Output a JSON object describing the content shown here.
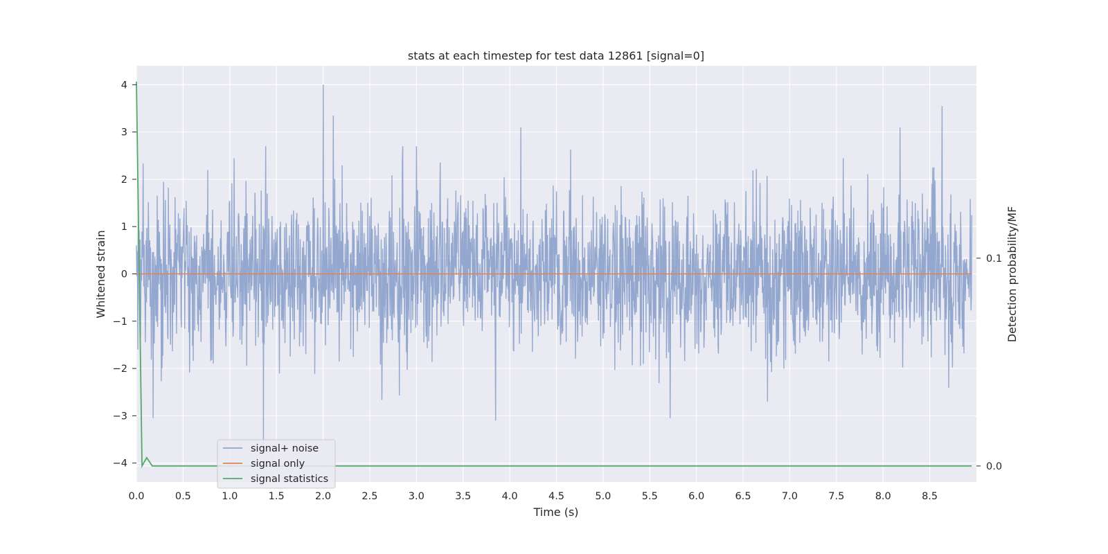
{
  "chart_data": {
    "type": "line",
    "title": "stats at each timestep for test data 12861 [signal=0]",
    "xlabel": "Time (s)",
    "ylabel": "Whitened strain",
    "y2label": "Detection probability/MF",
    "xlim": [
      0.0,
      9.0
    ],
    "ylim": [
      -4.4,
      4.4
    ],
    "y2lim": [
      -0.0077,
      0.1926
    ],
    "xticks": [
      "0.0",
      "0.5",
      "1.0",
      "1.5",
      "2.0",
      "2.5",
      "3.0",
      "3.5",
      "4.0",
      "4.5",
      "5.0",
      "5.5",
      "6.0",
      "6.5",
      "7.0",
      "7.5",
      "8.0",
      "8.5"
    ],
    "xtick_values": [
      0.0,
      0.5,
      1.0,
      1.5,
      2.0,
      2.5,
      3.0,
      3.5,
      4.0,
      4.5,
      5.0,
      5.5,
      6.0,
      6.5,
      7.0,
      7.5,
      8.0,
      8.5
    ],
    "yticks": [
      "−4",
      "−3",
      "−2",
      "−1",
      "0",
      "1",
      "2",
      "3",
      "4"
    ],
    "ytick_values": [
      -4,
      -3,
      -2,
      -1,
      0,
      1,
      2,
      3,
      4
    ],
    "y2ticks": [
      "0.0",
      "0.1"
    ],
    "y2tick_values": [
      0.0,
      0.1
    ],
    "grid": true,
    "legend_position": "lower-left",
    "colors": {
      "background": "#eaeaf2",
      "grid": "#ffffff",
      "noise": "#8fa4cc",
      "signal_only": "#dd8452",
      "statistics": "#55a868",
      "text": "#262626"
    },
    "series": [
      {
        "name": "signal+ noise",
        "axis": "left",
        "description_of_shape": "dense whitened noise sampled over the full interval",
        "sample_count": 2250,
        "envelope_min": -3.6,
        "envelope_max": 4.0,
        "peaks": [
          {
            "x": 2.0,
            "y": 4.0
          },
          {
            "x": 2.11,
            "y": 3.35
          },
          {
            "x": 4.12,
            "y": 3.1
          },
          {
            "x": 8.18,
            "y": 3.1
          },
          {
            "x": 8.63,
            "y": 3.55
          },
          {
            "x": 1.36,
            "y": -3.6
          },
          {
            "x": 3.85,
            "y": -3.1
          },
          {
            "x": 0.18,
            "y": -3.05
          },
          {
            "x": 5.72,
            "y": -3.05
          }
        ]
      },
      {
        "name": "signal only",
        "axis": "left",
        "x": [
          0.0,
          8.95
        ],
        "values": [
          0.0,
          0.0
        ]
      },
      {
        "name": "signal statistics",
        "axis": "right",
        "x": [
          0.0,
          0.06,
          0.11,
          0.17,
          8.95
        ],
        "values": [
          0.185,
          0.0,
          0.004,
          0.0,
          0.0
        ]
      }
    ]
  }
}
